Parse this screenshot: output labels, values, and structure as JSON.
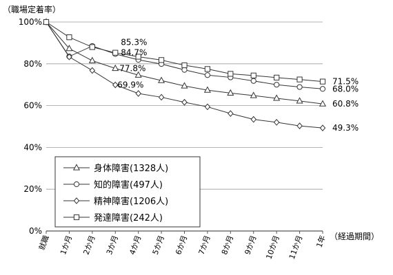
{
  "chart_data": {
    "type": "line",
    "ylabel": "（職場定着率）",
    "xlabel": "（経過期間）",
    "x": [
      "就職",
      "1か月",
      "2か月",
      "3か月",
      "4か月",
      "5か月",
      "6か月",
      "7か月",
      "8か月",
      "9か月",
      "10か月",
      "11か月",
      "1年"
    ],
    "ylim": [
      0,
      100
    ],
    "yticks": [
      "0%",
      "20%",
      "40%",
      "60%",
      "80%",
      "100%"
    ],
    "grid": true,
    "legend_position": "bottom-left",
    "series": [
      {
        "name": "身体障害(1328人)",
        "marker": "triangle",
        "values": [
          100,
          87.3,
          81.5,
          77.8,
          74.6,
          72.0,
          69.4,
          67.4,
          66.0,
          64.8,
          63.5,
          62.2,
          60.8
        ]
      },
      {
        "name": "知的障害(497人)",
        "marker": "circle",
        "values": [
          100,
          83.5,
          88.5,
          84.7,
          81.9,
          79.9,
          77.1,
          74.6,
          73.5,
          71.8,
          70.0,
          68.9,
          68.0
        ]
      },
      {
        "name": "精神障害(1206人)",
        "marker": "diamond",
        "values": [
          100,
          83.3,
          76.8,
          69.9,
          65.8,
          64.0,
          61.6,
          59.4,
          56.2,
          53.4,
          52.0,
          50.3,
          49.3
        ]
      },
      {
        "name": "発達障害(242人)",
        "marker": "square",
        "values": [
          100,
          92.7,
          88.0,
          85.3,
          83.4,
          81.8,
          79.3,
          77.5,
          75.2,
          74.4,
          73.4,
          72.5,
          71.5
        ]
      }
    ],
    "annotations": [
      {
        "text": "85.3%",
        "x": "3か月",
        "series": "発達障害(242人)"
      },
      {
        "text": "84.7%",
        "x": "3か月",
        "series": "知的障害(497人)"
      },
      {
        "text": "77.8%",
        "x": "3か月",
        "series": "身体障害(1328人)"
      },
      {
        "text": "69.9%",
        "x": "3か月",
        "series": "精神障害(1206人)"
      },
      {
        "text": "71.5%",
        "x": "1年",
        "series": "発達障害(242人)"
      },
      {
        "text": "68.0%",
        "x": "1年",
        "series": "知的障害(497人)"
      },
      {
        "text": "60.8%",
        "x": "1年",
        "series": "身体障害(1328人)"
      },
      {
        "text": "49.3%",
        "x": "1年",
        "series": "精神障害(1206人)"
      }
    ]
  }
}
